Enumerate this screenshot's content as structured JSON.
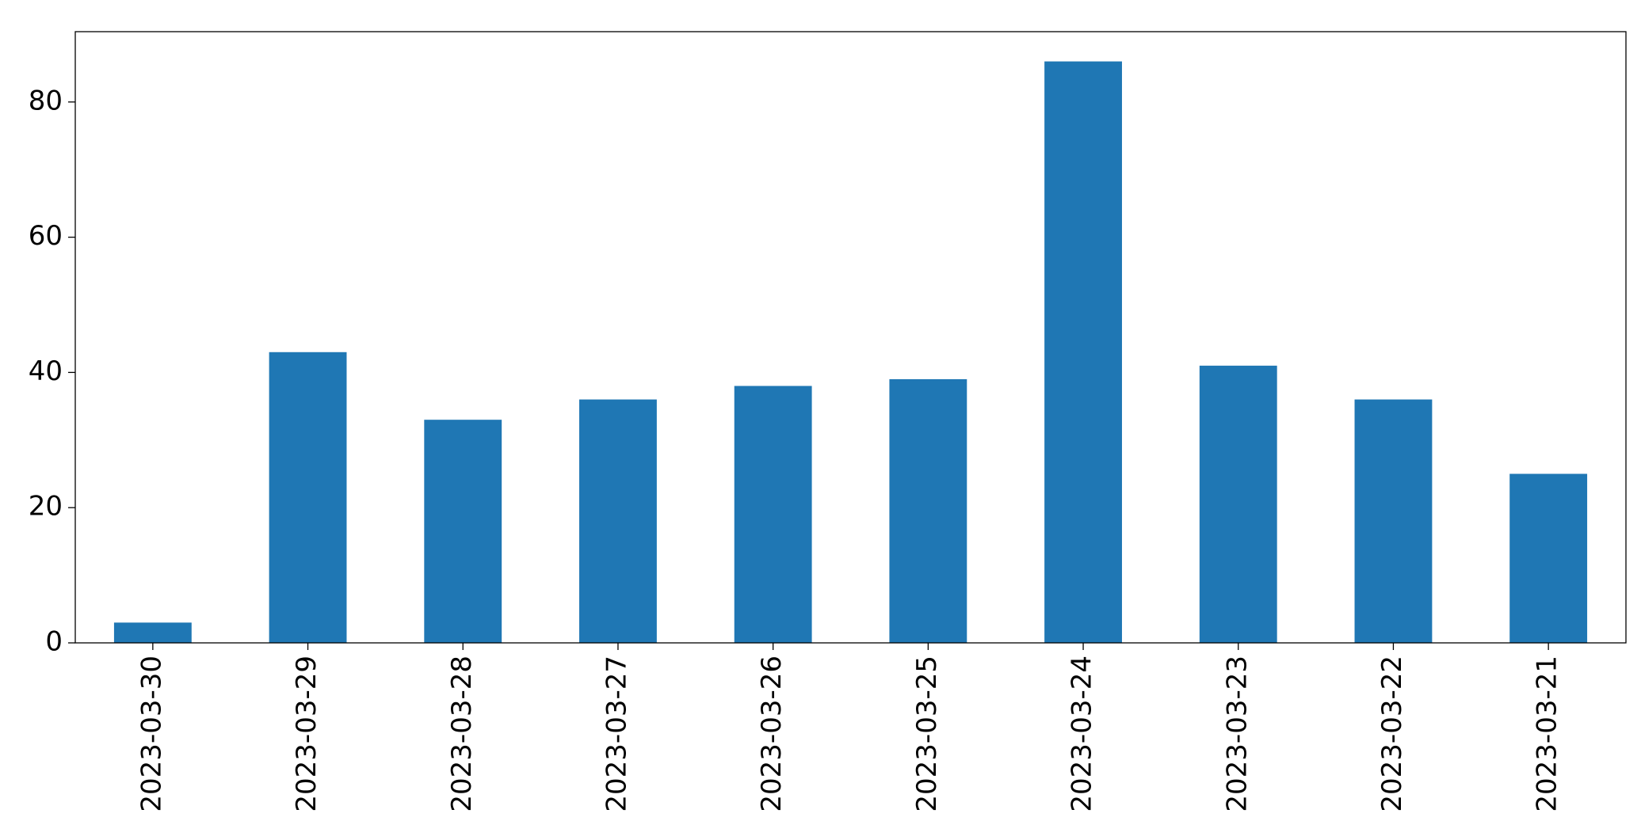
{
  "chart_data": {
    "type": "bar",
    "categories": [
      "2023-03-30",
      "2023-03-29",
      "2023-03-28",
      "2023-03-27",
      "2023-03-26",
      "2023-03-25",
      "2023-03-24",
      "2023-03-23",
      "2023-03-22",
      "2023-03-21"
    ],
    "values": [
      3,
      43,
      33,
      36,
      38,
      39,
      86,
      41,
      36,
      25
    ],
    "color": "#1f77b4",
    "ylim": [
      0,
      90.4
    ],
    "yticks": [
      0,
      20,
      40,
      60,
      80
    ],
    "grid": false
  }
}
